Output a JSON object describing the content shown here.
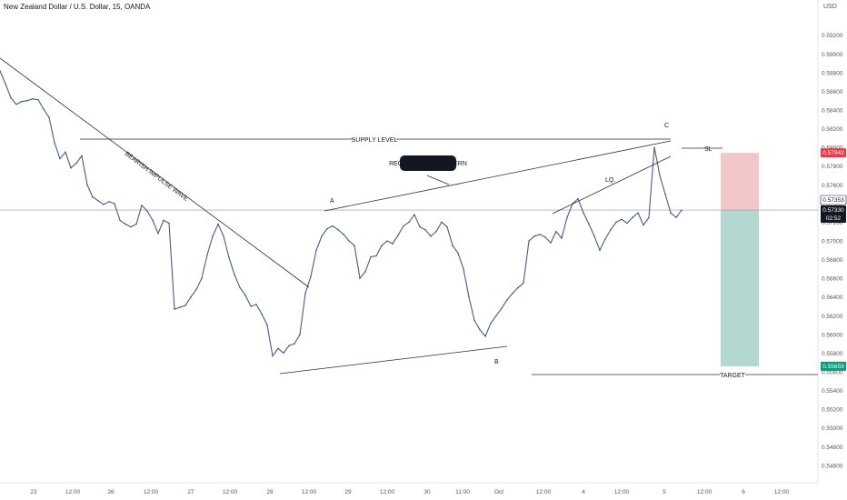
{
  "header": {
    "title": "New Zealand Dollar / U.S. Dollar, 15, OANDA",
    "currency": "USD"
  },
  "chart_data": {
    "type": "line",
    "title": "New Zealand Dollar / U.S. Dollar, 15, OANDA",
    "ylim": [
      0.5455,
      0.5945
    ],
    "y_ticks": [
      "0.59200",
      "0.59000",
      "0.58800",
      "0.58600",
      "0.58400",
      "0.58200",
      "0.58000",
      "0.57800",
      "0.57600",
      "0.57400",
      "0.57200",
      "0.57000",
      "0.56800",
      "0.56600",
      "0.56400",
      "0.56200",
      "0.56000",
      "0.55800",
      "0.55600",
      "0.55400",
      "0.55200",
      "0.55000",
      "0.54800",
      "0.54600"
    ],
    "x_ticks": [
      "23",
      "12:00",
      "26",
      "12:00",
      "27",
      "12:00",
      "28",
      "12:00",
      "29",
      "12:00",
      "30",
      "11:00",
      "Oct",
      "12:00",
      "4",
      "12:00",
      "5",
      "12:00",
      "6",
      "12:00"
    ],
    "series": [
      {
        "values": [
          0.5882,
          0.5868,
          0.5853,
          0.5846,
          0.5849,
          0.585,
          0.5852,
          0.5851,
          0.5841,
          0.5832,
          0.5805,
          0.5788,
          0.5795,
          0.5778,
          0.5783,
          0.5791,
          0.576,
          0.5747,
          0.5743,
          0.5739,
          0.5742,
          0.574,
          0.5722,
          0.5718,
          0.5715,
          0.5718,
          0.5738,
          0.5732,
          0.5722,
          0.5708,
          0.5722,
          0.5719,
          0.5627,
          0.5629,
          0.5631,
          0.564,
          0.5648,
          0.566,
          0.5685,
          0.5705,
          0.5718,
          0.5705,
          0.5682,
          0.5664,
          0.565,
          0.5642,
          0.563,
          0.5632,
          0.5622,
          0.561,
          0.5577,
          0.5585,
          0.558,
          0.5588,
          0.559,
          0.56,
          0.5644,
          0.5662,
          0.569,
          0.5705,
          0.5713,
          0.5716,
          0.5712,
          0.5707,
          0.57,
          0.5695,
          0.566,
          0.5667,
          0.5683,
          0.5684,
          0.5695,
          0.57,
          0.5697,
          0.5706,
          0.5716,
          0.572,
          0.5728,
          0.5715,
          0.5712,
          0.5705,
          0.571,
          0.572,
          0.5715,
          0.5695,
          0.5687,
          0.567,
          0.564,
          0.5615,
          0.5605,
          0.5598,
          0.5612,
          0.562,
          0.5628,
          0.5637,
          0.5644,
          0.565,
          0.5655,
          0.57,
          0.5705,
          0.5707,
          0.5704,
          0.5698,
          0.571,
          0.5703,
          0.5725,
          0.574,
          0.5745,
          0.573,
          0.5718,
          0.5705,
          0.569,
          0.5702,
          0.5712,
          0.572,
          0.5723,
          0.5719,
          0.5725,
          0.573,
          0.5717,
          0.5725,
          0.58,
          0.577,
          0.575,
          0.573,
          0.5725,
          0.5733
        ]
      }
    ],
    "annotations": {
      "supply_level": "SUPPLY LEVEL",
      "impulse": "BEARISH IMPULSE WAVE",
      "flat_pattern": "REGULAR FLAT PATTERN",
      "liquidity": "LQ.",
      "point_a": "A",
      "point_b": "B",
      "point_c": "C",
      "stop_loss": "SL",
      "target": "TARGET"
    },
    "position": {
      "entry": 0.5733,
      "stop_loss": 0.57942,
      "target": 0.55659
    },
    "price_labels": {
      "stop_loss": "0.57942",
      "upper": "0.57353",
      "current": "0.57330",
      "countdown": "02:52",
      "target": "0.55659"
    },
    "colors": {
      "price_line": "#2a2e39",
      "trendline": "#2a2e39",
      "loss_zone": "#f2c7c9",
      "profit_zone": "#b2d8cf",
      "stop_label": "#f23645",
      "target_label": "#089981",
      "current_label": "#131722",
      "upper_label": "#ffffff"
    }
  }
}
